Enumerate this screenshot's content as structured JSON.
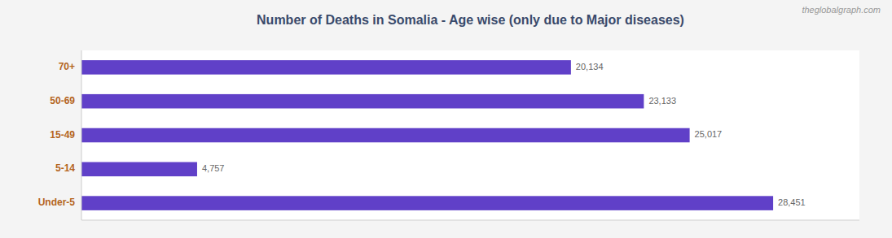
{
  "chart_data": {
    "type": "bar",
    "orientation": "horizontal",
    "title": "Number of Deaths in Somalia - Age wise (only due to Major diseases)",
    "annotations": [
      "theglobalgraph.com"
    ],
    "categories": [
      "Under-5",
      "5-14",
      "15-49",
      "50-69",
      "70+"
    ],
    "values": [
      28451,
      4757,
      25017,
      23133,
      20134
    ],
    "value_labels": [
      "28,451",
      "4,757",
      "25,017",
      "23,133",
      "20,134"
    ],
    "data_labels": true,
    "color": "#6040c8",
    "xlim": [
      0,
      32000
    ],
    "tick_labels": "y",
    "grid": false
  }
}
